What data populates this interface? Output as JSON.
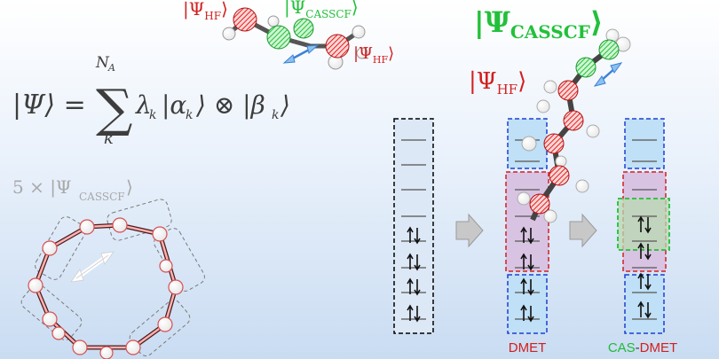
{
  "formula": {
    "lhs": "|Ψ⟩ = ",
    "sum_upper": "N",
    "sum_upper_sub": "A",
    "sum_lower": "k",
    "term": "λ",
    "term_sub": "k",
    "alpha": "|α",
    "alpha_sub": "k",
    "otimes": "⟩ ⊗ |β",
    "beta_sub": "k",
    "close": "⟩"
  },
  "ring_label": {
    "prefix": "5 × |Ψ",
    "sub": "CASSCF",
    "close": "⟩"
  },
  "kets": {
    "hf_base": "|Ψ",
    "hf_sub": "HF",
    "casscf_base": "|Ψ",
    "casscf_sub": "CASSCF",
    "close": "⟩"
  },
  "column_labels": {
    "dmet": "DMET",
    "cas": "CAS",
    "dash": "-",
    "dmet2": "DMET"
  },
  "colors": {
    "red": "#d21f1f",
    "green": "#22c03a",
    "blue": "#1f3fd0"
  }
}
